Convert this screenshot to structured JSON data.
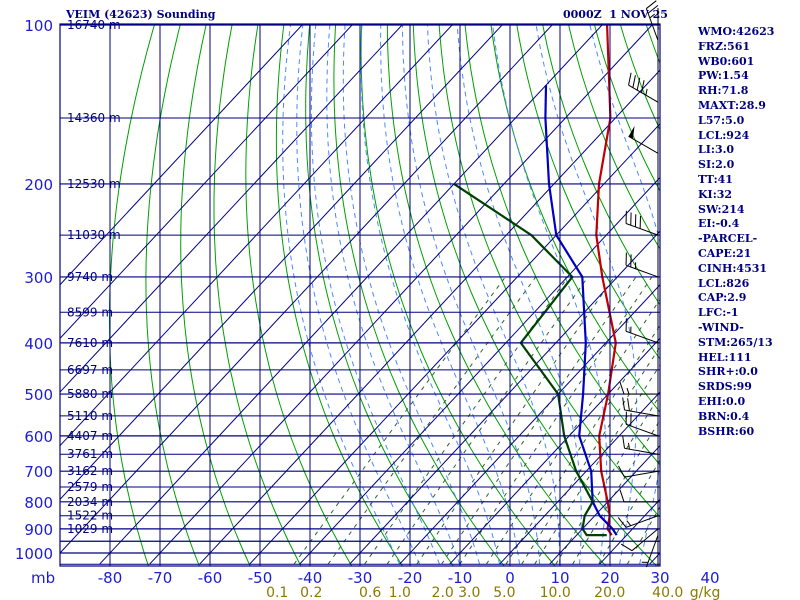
{
  "header": {
    "title": "VEIM (42623) Sounding",
    "time": "0000Z  1 NOV 25"
  },
  "stats": [
    "WMO:42623",
    "FRZ:561",
    "WB0:601",
    "PW:1.54",
    "RH:71.8",
    "MAXT:28.9",
    "L57:5.0",
    "LCL:924",
    "LI:3.0",
    "SI:2.0",
    "TT:41",
    "KI:32",
    "SW:214",
    "EI:-0.4",
    "-PARCEL-",
    "CAPE:21",
    "CINH:4531",
    "LCL:826",
    "CAP:2.9",
    "LFC:-1",
    "-WIND-",
    "STM:265/13",
    "HEL:111",
    "SHR+:0.0",
    "SRDS:99",
    "EHI:0.0",
    "BRN:0.4",
    "BSHR:60"
  ],
  "colors": {
    "temperature": "#c00000",
    "dewpoint": "#004000",
    "parcel": "#0000c0",
    "grid": "#000080",
    "dry_adiabat": "#00a000",
    "moist_adiabat": "#4a8aff",
    "mixing_ratio": "#306030",
    "wind": "#000000",
    "axis_text": "#1c1cd6"
  },
  "chart_data": {
    "type": "skew-t",
    "title": "VEIM (42623) Sounding",
    "pressure_unit": "mb",
    "mixing_ratio_unit": "g/kg",
    "pressure_ticks": [
      100,
      200,
      300,
      400,
      500,
      600,
      700,
      800,
      900,
      1000
    ],
    "temperature_ticks": [
      -80,
      -70,
      -60,
      -50,
      -40,
      -30,
      -20,
      -10,
      0,
      10,
      20,
      30,
      40
    ],
    "temperature_tick_labels": [
      "-80",
      "-70",
      "-60",
      "-50",
      "-40",
      "-30",
      "-20",
      "-10",
      "0",
      "10",
      "20",
      "30",
      "40"
    ],
    "temperature_range": [
      -80,
      40
    ],
    "mixing_ratio_ticks": [
      {
        "label": "0.1",
        "w": 0.1
      },
      {
        "label": "0.2",
        "w": 0.2
      },
      {
        "label": "0.6",
        "w": 0.6
      },
      {
        "label": "1.0",
        "w": 1.0
      },
      {
        "label": "2.0",
        "w": 2.0
      },
      {
        "label": "3.0",
        "w": 3.0
      },
      {
        "label": "5.0",
        "w": 5.0
      },
      {
        "label": "10.0",
        "w": 10.0
      },
      {
        "label": "20.0",
        "w": 20.0
      },
      {
        "label": "40.0",
        "w": 40.0
      }
    ],
    "height_labels": [
      {
        "p": 100,
        "label": "16740 m"
      },
      {
        "p": 150,
        "label": "14360 m"
      },
      {
        "p": 200,
        "label": "12530 m"
      },
      {
        "p": 250,
        "label": "11030 m"
      },
      {
        "p": 300,
        "label": "9740 m"
      },
      {
        "p": 350,
        "label": "8599 m"
      },
      {
        "p": 400,
        "label": "7610 m"
      },
      {
        "p": 450,
        "label": "6697 m"
      },
      {
        "p": 500,
        "label": "5880 m"
      },
      {
        "p": 550,
        "label": "5110 m"
      },
      {
        "p": 600,
        "label": "4407 m"
      },
      {
        "p": 650,
        "label": "3761 m"
      },
      {
        "p": 700,
        "label": "3162 m"
      },
      {
        "p": 750,
        "label": "2579 m"
      },
      {
        "p": 800,
        "label": "2034 m"
      },
      {
        "p": 850,
        "label": "1522 m"
      },
      {
        "p": 900,
        "label": "1029 m"
      }
    ],
    "series": [
      {
        "name": "temperature",
        "points": [
          [
            100,
            -79
          ],
          [
            150,
            -61
          ],
          [
            200,
            -51
          ],
          [
            250,
            -42
          ],
          [
            300,
            -33
          ],
          [
            400,
            -18
          ],
          [
            500,
            -10
          ],
          [
            600,
            -4
          ],
          [
            700,
            3
          ],
          [
            800,
            10
          ],
          [
            850,
            13
          ],
          [
            900,
            15
          ],
          [
            925,
            17
          ]
        ]
      },
      {
        "name": "parcel",
        "points": [
          [
            130,
            -80
          ],
          [
            150,
            -74
          ],
          [
            200,
            -61
          ],
          [
            250,
            -50
          ],
          [
            300,
            -37
          ],
          [
            400,
            -24
          ],
          [
            500,
            -15
          ],
          [
            600,
            -8
          ],
          [
            700,
            1
          ],
          [
            800,
            7
          ],
          [
            850,
            11
          ],
          [
            900,
            16
          ],
          [
            925,
            18
          ]
        ]
      },
      {
        "name": "dewpoint",
        "points": [
          [
            200,
            -80
          ],
          [
            250,
            -55
          ],
          [
            300,
            -39
          ],
          [
            400,
            -37
          ],
          [
            500,
            -20
          ],
          [
            600,
            -11
          ],
          [
            700,
            -2
          ],
          [
            800,
            7
          ],
          [
            850,
            8
          ],
          [
            900,
            10
          ],
          [
            925,
            12
          ],
          [
            925,
            16
          ]
        ]
      }
    ],
    "wind_barbs": [
      {
        "p": 107,
        "dir": 340,
        "speed": 25
      },
      {
        "p": 140,
        "dir": 300,
        "speed": 45
      },
      {
        "p": 175,
        "dir": 300,
        "speed": 50
      },
      {
        "p": 250,
        "dir": 290,
        "speed": 40
      },
      {
        "p": 300,
        "dir": 290,
        "speed": 25
      },
      {
        "p": 400,
        "dir": 290,
        "speed": 15
      },
      {
        "p": 500,
        "dir": 270,
        "speed": 15
      },
      {
        "p": 550,
        "dir": 280,
        "speed": 20
      },
      {
        "p": 600,
        "dir": 290,
        "speed": 20
      },
      {
        "p": 650,
        "dir": 280,
        "speed": 15
      },
      {
        "p": 700,
        "dir": 260,
        "speed": 10
      },
      {
        "p": 800,
        "dir": 270,
        "speed": 10
      },
      {
        "p": 850,
        "dir": 250,
        "speed": 15
      },
      {
        "p": 900,
        "dir": 230,
        "speed": 10
      },
      {
        "p": 925,
        "dir": 200,
        "speed": 5
      }
    ]
  }
}
